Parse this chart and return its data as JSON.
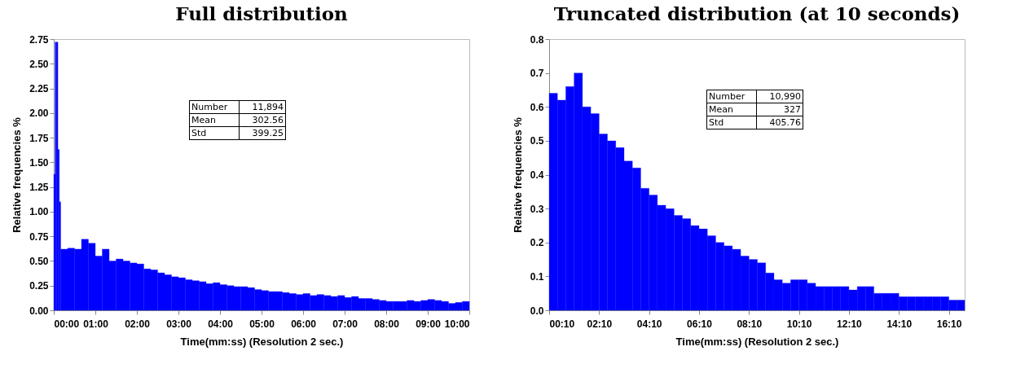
{
  "chart_data": [
    {
      "type": "histogram",
      "title": "Full distribution",
      "xlabel": "Time(mm:ss) (Resolution 2 sec.)",
      "ylabel": "Relative frequencies %",
      "color": "#0000ff",
      "bins": [
        0,
        2,
        4,
        6,
        8,
        10,
        20,
        30,
        40,
        50,
        60,
        70,
        80,
        90,
        100,
        110,
        120,
        130,
        140,
        150,
        160,
        170,
        180,
        190,
        200,
        210,
        220,
        230,
        240,
        250,
        260,
        270,
        280,
        290,
        300,
        310,
        320,
        330,
        340,
        350,
        360,
        370,
        380,
        390,
        400,
        410,
        420,
        430,
        440,
        450,
        460,
        470,
        480,
        490,
        500,
        510,
        520,
        530,
        540,
        550,
        560,
        570,
        580,
        590,
        600
      ],
      "values": [
        1.38,
        2.72,
        2.72,
        1.63,
        1.1,
        0.62,
        0.63,
        0.62,
        0.72,
        0.68,
        0.55,
        0.62,
        0.5,
        0.52,
        0.5,
        0.48,
        0.47,
        0.42,
        0.41,
        0.38,
        0.36,
        0.34,
        0.33,
        0.31,
        0.3,
        0.29,
        0.27,
        0.28,
        0.26,
        0.25,
        0.24,
        0.24,
        0.23,
        0.21,
        0.2,
        0.19,
        0.19,
        0.18,
        0.17,
        0.16,
        0.17,
        0.15,
        0.16,
        0.15,
        0.14,
        0.15,
        0.13,
        0.14,
        0.12,
        0.12,
        0.11,
        0.1,
        0.09,
        0.09,
        0.09,
        0.1,
        0.09,
        0.1,
        0.11,
        0.1,
        0.09,
        0.07,
        0.08,
        0.09
      ],
      "xlim": [
        0,
        600
      ],
      "xticks": [
        {
          "value": 0,
          "label": "00:00"
        },
        {
          "value": 60,
          "label": "01:00"
        },
        {
          "value": 120,
          "label": "02:00"
        },
        {
          "value": 180,
          "label": "03:00"
        },
        {
          "value": 240,
          "label": "04:00"
        },
        {
          "value": 300,
          "label": "05:00"
        },
        {
          "value": 360,
          "label": "06:00"
        },
        {
          "value": 420,
          "label": "07:00"
        },
        {
          "value": 480,
          "label": "08:00"
        },
        {
          "value": 540,
          "label": "09:00"
        },
        {
          "value": 600,
          "label": "10:00"
        }
      ],
      "ylim": [
        0,
        2.75
      ],
      "yticks": [
        {
          "value": 0,
          "label": "0.00"
        },
        {
          "value": 0.25,
          "label": "0.25"
        },
        {
          "value": 0.5,
          "label": "0.50"
        },
        {
          "value": 0.75,
          "label": "0.75"
        },
        {
          "value": 1,
          "label": "1.00"
        },
        {
          "value": 1.25,
          "label": "1.25"
        },
        {
          "value": 1.5,
          "label": "1.50"
        },
        {
          "value": 1.75,
          "label": "1.75"
        },
        {
          "value": 2,
          "label": "2.00"
        },
        {
          "value": 2.25,
          "label": "2.25"
        },
        {
          "value": 2.5,
          "label": "2.50"
        },
        {
          "value": 2.75,
          "label": "2.75"
        }
      ],
      "annotations": [
        "Number",
        "11,894",
        "Mean",
        "302.56",
        "Std",
        "399.25"
      ]
    },
    {
      "type": "histogram",
      "title": "Truncated distribution (at 10 seconds)",
      "xlabel": "Time(mm:ss) (Resolution 2 sec.)",
      "ylabel": "Relative frequencies %",
      "color": "#0000ff",
      "bins": [
        10,
        30,
        50,
        70,
        90,
        110,
        130,
        150,
        170,
        190,
        210,
        230,
        250,
        270,
        290,
        310,
        330,
        350,
        370,
        390,
        410,
        430,
        450,
        470,
        490,
        510,
        530,
        550,
        570,
        590,
        610,
        630,
        650,
        670,
        690,
        710,
        730,
        750,
        770,
        790,
        810,
        830,
        850,
        870,
        890,
        910,
        930,
        950,
        970,
        990,
        1008
      ],
      "values": [
        0.64,
        0.62,
        0.66,
        0.7,
        0.6,
        0.58,
        0.52,
        0.5,
        0.48,
        0.44,
        0.42,
        0.36,
        0.34,
        0.31,
        0.3,
        0.28,
        0.27,
        0.25,
        0.24,
        0.22,
        0.2,
        0.19,
        0.18,
        0.16,
        0.15,
        0.14,
        0.11,
        0.09,
        0.08,
        0.09,
        0.09,
        0.08,
        0.07,
        0.07,
        0.07,
        0.07,
        0.06,
        0.07,
        0.07,
        0.05,
        0.05,
        0.05,
        0.04,
        0.04,
        0.04,
        0.04,
        0.04,
        0.04,
        0.03,
        0.03
      ],
      "xlim": [
        10,
        1008
      ],
      "xticks": [
        {
          "value": 10,
          "label": "00:10"
        },
        {
          "value": 130,
          "label": "02:10"
        },
        {
          "value": 250,
          "label": "04:10"
        },
        {
          "value": 370,
          "label": "06:10"
        },
        {
          "value": 490,
          "label": "08:10"
        },
        {
          "value": 610,
          "label": "10:10"
        },
        {
          "value": 730,
          "label": "12:10"
        },
        {
          "value": 850,
          "label": "14:10"
        },
        {
          "value": 970,
          "label": "16:10"
        }
      ],
      "ylim": [
        0,
        0.8
      ],
      "yticks": [
        {
          "value": 0,
          "label": "0.0"
        },
        0.1,
        0.2,
        0.3,
        0.4,
        0.5,
        0.6,
        0.7,
        0.8
      ],
      "annotations": [
        "Number",
        "10,990",
        "Mean",
        "327",
        "Std",
        "405.76"
      ]
    }
  ]
}
